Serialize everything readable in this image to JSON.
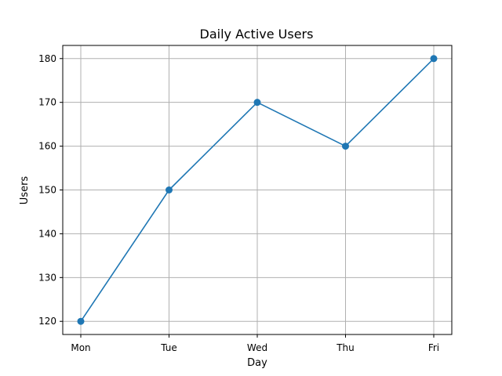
{
  "chart_data": {
    "type": "line",
    "title": "Daily Active Users",
    "xlabel": "Day",
    "ylabel": "Users",
    "categories": [
      "Mon",
      "Tue",
      "Wed",
      "Thu",
      "Fri"
    ],
    "series": [
      {
        "values": [
          120,
          150,
          170,
          160,
          180
        ],
        "color": "#1f77b4",
        "marker": "circle"
      }
    ],
    "ylim": [
      117,
      183
    ],
    "yticks": [
      120,
      130,
      140,
      150,
      160,
      170,
      180
    ],
    "grid": true,
    "legend": "none"
  }
}
